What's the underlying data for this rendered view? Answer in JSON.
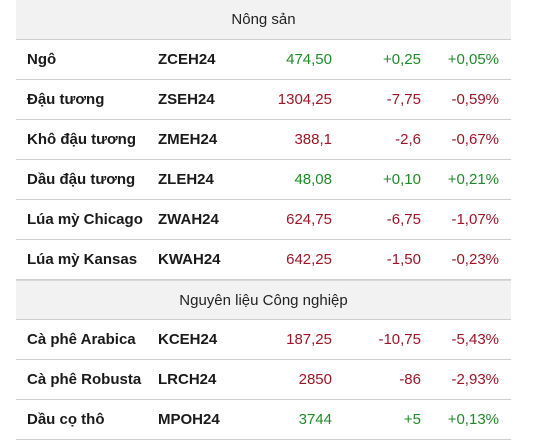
{
  "colors": {
    "up": "#1f8a2a",
    "down": "#9b1626",
    "section_bg": "#f2f2f2"
  },
  "sections": [
    {
      "title": "Nông sản",
      "rows": [
        {
          "name": "Ngô",
          "code": "ZCEH24",
          "price": "474,50",
          "change": "+0,25",
          "pct": "+0,05%",
          "direction": "up"
        },
        {
          "name": "Đậu tương",
          "code": "ZSEH24",
          "price": "1304,25",
          "change": "-7,75",
          "pct": "-0,59%",
          "direction": "down"
        },
        {
          "name": "Khô đậu tương",
          "code": "ZMEH24",
          "price": "388,1",
          "change": "-2,6",
          "pct": "-0,67%",
          "direction": "down"
        },
        {
          "name": "Dầu đậu tương",
          "code": "ZLEH24",
          "price": "48,08",
          "change": "+0,10",
          "pct": "+0,21%",
          "direction": "up"
        },
        {
          "name": "Lúa mỳ Chicago",
          "code": "ZWAH24",
          "price": "624,75",
          "change": "-6,75",
          "pct": "-1,07%",
          "direction": "down"
        },
        {
          "name": "Lúa mỳ Kansas",
          "code": "KWAH24",
          "price": "642,25",
          "change": "-1,50",
          "pct": "-0,23%",
          "direction": "down"
        }
      ]
    },
    {
      "title": "Nguyên liệu Công nghiệp",
      "rows": [
        {
          "name": "Cà phê Arabica",
          "code": "KCEH24",
          "price": "187,25",
          "change": "-10,75",
          "pct": "-5,43%",
          "direction": "down"
        },
        {
          "name": "Cà phê Robusta",
          "code": "LRCH24",
          "price": "2850",
          "change": "-86",
          "pct": "-2,93%",
          "direction": "down"
        },
        {
          "name": "Dầu cọ thô",
          "code": "MPOH24",
          "price": "3744",
          "change": "+5",
          "pct": "+0,13%",
          "direction": "up"
        }
      ]
    }
  ]
}
